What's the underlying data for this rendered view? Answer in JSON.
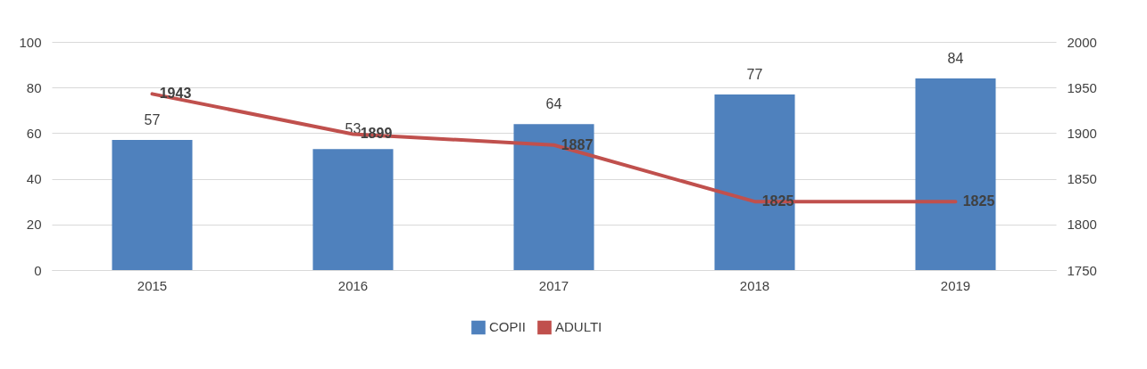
{
  "chart_data": {
    "type": "bar",
    "categories": [
      "2015",
      "2016",
      "2017",
      "2018",
      "2019"
    ],
    "series": [
      {
        "name": "COPII",
        "color": "#4f81bd",
        "values": [
          57,
          53,
          64,
          77,
          84
        ]
      },
      {
        "name": "ADULTI",
        "type": "line",
        "axis": "y2",
        "color": "#c0504d",
        "values": [
          1943,
          1899,
          1887,
          1825,
          1825
        ]
      }
    ],
    "ylim": [
      0,
      100
    ],
    "yticks": [
      0,
      20,
      40,
      60,
      80,
      100
    ],
    "y2lim": [
      1750,
      2000
    ],
    "y2ticks": [
      1750,
      1800,
      1850,
      1900,
      1950,
      2000
    ],
    "grid": "y",
    "legend": "bottom",
    "data_labels": true,
    "marker": "none",
    "line_style": "solid"
  }
}
